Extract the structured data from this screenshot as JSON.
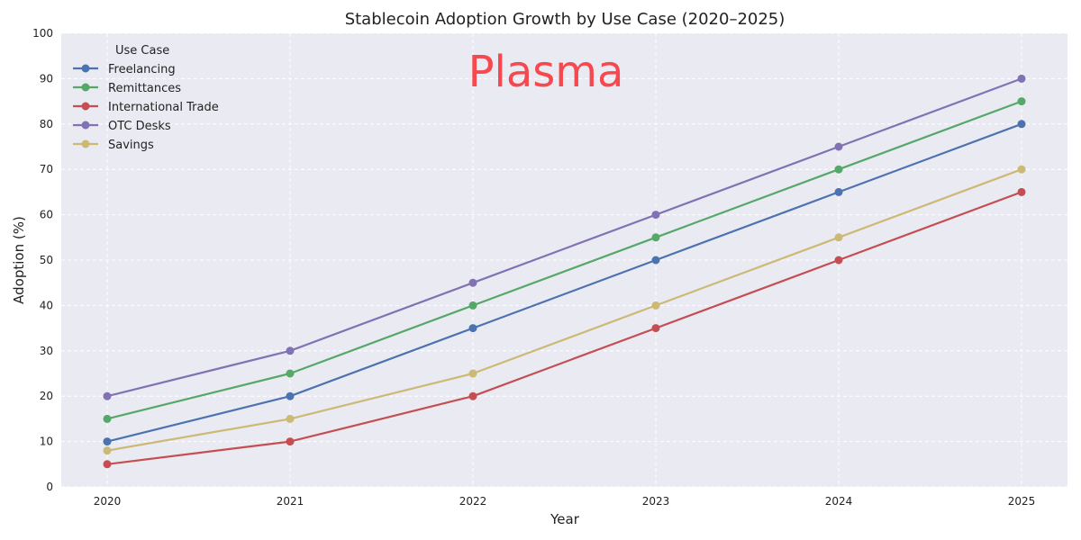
{
  "chart_data": {
    "type": "line",
    "title": "Stablecoin Adoption Growth by Use Case (2020–2025)",
    "xlabel": "Year",
    "ylabel": "Adoption (%)",
    "x": [
      2020,
      2021,
      2022,
      2023,
      2024,
      2025
    ],
    "x_tick_labels": [
      "2020",
      "2021",
      "2022",
      "2023",
      "2024",
      "2025"
    ],
    "ylim": [
      0,
      100
    ],
    "y_ticks": [
      0,
      10,
      20,
      30,
      40,
      50,
      60,
      70,
      80,
      90,
      100
    ],
    "grid": true,
    "legend": {
      "title": "Use Case",
      "position": "top-left"
    },
    "series": [
      {
        "name": "Freelancing",
        "color": "#4c72b0",
        "values": [
          10,
          20,
          35,
          50,
          65,
          80
        ]
      },
      {
        "name": "Remittances",
        "color": "#55a868",
        "values": [
          15,
          25,
          40,
          55,
          70,
          85
        ]
      },
      {
        "name": "International Trade",
        "color": "#c44e52",
        "values": [
          5,
          10,
          20,
          35,
          50,
          65
        ]
      },
      {
        "name": "OTC Desks",
        "color": "#8172b3",
        "values": [
          20,
          30,
          45,
          60,
          75,
          90
        ]
      },
      {
        "name": "Savings",
        "color": "#ccb974",
        "values": [
          8,
          15,
          25,
          40,
          55,
          70
        ]
      }
    ],
    "annotation": {
      "text": "Plasma",
      "color": "#f5484f"
    }
  },
  "colors": {
    "plot_background": "#eaeaf2",
    "grid": "#ffffff"
  }
}
